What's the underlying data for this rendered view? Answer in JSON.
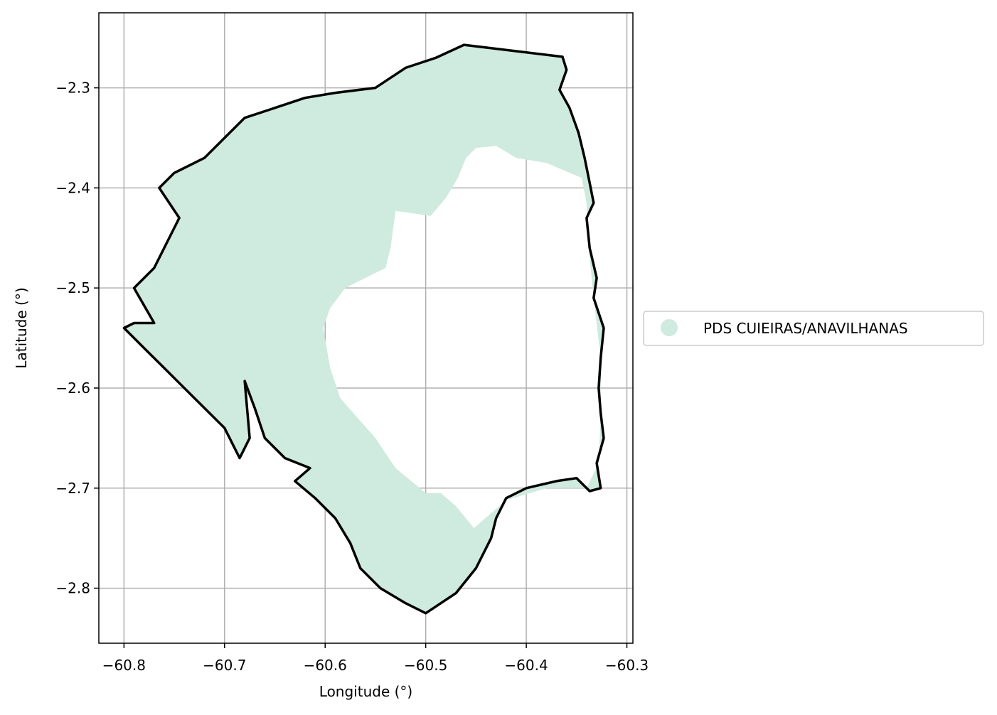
{
  "chart_data": {
    "type": "map",
    "xlabel": "Longitude (°)",
    "ylabel": "Latitude (°)",
    "xlim": [
      -60.825,
      -60.294
    ],
    "ylim": [
      -2.855,
      -2.225
    ],
    "xticks": [
      {
        "value": -60.8,
        "label": "−60.8"
      },
      {
        "value": -60.7,
        "label": "−60.7"
      },
      {
        "value": -60.6,
        "label": "−60.6"
      },
      {
        "value": -60.5,
        "label": "−60.5"
      },
      {
        "value": -60.4,
        "label": "−60.4"
      },
      {
        "value": -60.3,
        "label": "−60.3"
      }
    ],
    "yticks": [
      {
        "value": -2.3,
        "label": "−2.3"
      },
      {
        "value": -2.4,
        "label": "−2.4"
      },
      {
        "value": -2.5,
        "label": "−2.5"
      },
      {
        "value": -2.6,
        "label": "−2.6"
      },
      {
        "value": -2.7,
        "label": "−2.7"
      },
      {
        "value": -2.8,
        "label": "−2.8"
      }
    ],
    "grid": true,
    "legend": {
      "placement": "right-outside",
      "entries": [
        {
          "label": "PDS CUIEIRAS/ANAVILHANAS",
          "color": "#cfeade"
        }
      ]
    },
    "colors": {
      "fill": "#cfeade",
      "boundary": "#000000",
      "grid": "#b0b0b0"
    },
    "boundary": [
      [
        -60.462,
        -2.257
      ],
      [
        -60.364,
        -2.269
      ],
      [
        -60.36,
        -2.282
      ],
      [
        -60.367,
        -2.302
      ],
      [
        -60.357,
        -2.32
      ],
      [
        -60.348,
        -2.345
      ],
      [
        -60.342,
        -2.37
      ],
      [
        -60.337,
        -2.395
      ],
      [
        -60.333,
        -2.415
      ],
      [
        -60.34,
        -2.43
      ],
      [
        -60.337,
        -2.46
      ],
      [
        -60.33,
        -2.49
      ],
      [
        -60.333,
        -2.51
      ],
      [
        -60.323,
        -2.54
      ],
      [
        -60.326,
        -2.57
      ],
      [
        -60.328,
        -2.6
      ],
      [
        -60.326,
        -2.625
      ],
      [
        -60.323,
        -2.65
      ],
      [
        -60.33,
        -2.675
      ],
      [
        -60.326,
        -2.7
      ],
      [
        -60.337,
        -2.703
      ],
      [
        -60.35,
        -2.69
      ],
      [
        -60.37,
        -2.693
      ],
      [
        -60.4,
        -2.7
      ],
      [
        -60.42,
        -2.71
      ],
      [
        -60.43,
        -2.73
      ],
      [
        -60.435,
        -2.75
      ],
      [
        -60.45,
        -2.78
      ],
      [
        -60.47,
        -2.805
      ],
      [
        -60.485,
        -2.815
      ],
      [
        -60.5,
        -2.825
      ],
      [
        -60.52,
        -2.815
      ],
      [
        -60.545,
        -2.8
      ],
      [
        -60.565,
        -2.78
      ],
      [
        -60.575,
        -2.755
      ],
      [
        -60.59,
        -2.73
      ],
      [
        -60.61,
        -2.71
      ],
      [
        -60.63,
        -2.693
      ],
      [
        -60.615,
        -2.68
      ],
      [
        -60.64,
        -2.67
      ],
      [
        -60.66,
        -2.65
      ],
      [
        -60.67,
        -2.62
      ],
      [
        -60.68,
        -2.593
      ],
      [
        -60.675,
        -2.65
      ],
      [
        -60.685,
        -2.67
      ],
      [
        -60.7,
        -2.64
      ],
      [
        -60.73,
        -2.61
      ],
      [
        -60.76,
        -2.58
      ],
      [
        -60.78,
        -2.56
      ],
      [
        -60.8,
        -2.54
      ],
      [
        -60.79,
        -2.535
      ],
      [
        -60.77,
        -2.535
      ],
      [
        -60.79,
        -2.5
      ],
      [
        -60.77,
        -2.48
      ],
      [
        -60.76,
        -2.46
      ],
      [
        -60.745,
        -2.43
      ],
      [
        -60.765,
        -2.4
      ],
      [
        -60.75,
        -2.385
      ],
      [
        -60.72,
        -2.37
      ],
      [
        -60.71,
        -2.36
      ],
      [
        -60.7,
        -2.35
      ],
      [
        -60.68,
        -2.33
      ],
      [
        -60.65,
        -2.32
      ],
      [
        -60.62,
        -2.31
      ],
      [
        -60.59,
        -2.305
      ],
      [
        -60.55,
        -2.3
      ],
      [
        -60.52,
        -2.28
      ],
      [
        -60.49,
        -2.27
      ]
    ],
    "hole": [
      [
        -60.58,
        -2.5
      ],
      [
        -60.56,
        -2.49
      ],
      [
        -60.54,
        -2.48
      ],
      [
        -60.535,
        -2.46
      ],
      [
        -60.53,
        -2.423
      ],
      [
        -60.515,
        -2.425
      ],
      [
        -60.495,
        -2.428
      ],
      [
        -60.48,
        -2.41
      ],
      [
        -60.468,
        -2.39
      ],
      [
        -60.46,
        -2.37
      ],
      [
        -60.45,
        -2.36
      ],
      [
        -60.43,
        -2.358
      ],
      [
        -60.41,
        -2.37
      ],
      [
        -60.38,
        -2.375
      ],
      [
        -60.345,
        -2.39
      ],
      [
        -60.34,
        -2.415
      ],
      [
        -60.338,
        -2.46
      ],
      [
        -60.333,
        -2.51
      ],
      [
        -60.326,
        -2.57
      ],
      [
        -60.326,
        -2.625
      ],
      [
        -60.328,
        -2.675
      ],
      [
        -60.34,
        -2.7
      ],
      [
        -60.38,
        -2.7
      ],
      [
        -60.42,
        -2.712
      ],
      [
        -60.435,
        -2.725
      ],
      [
        -60.452,
        -2.74
      ],
      [
        -60.47,
        -2.718
      ],
      [
        -60.485,
        -2.705
      ],
      [
        -60.5,
        -2.705
      ],
      [
        -60.53,
        -2.68
      ],
      [
        -60.55,
        -2.65
      ],
      [
        -60.585,
        -2.61
      ],
      [
        -60.595,
        -2.58
      ],
      [
        -60.602,
        -2.54
      ],
      [
        -60.595,
        -2.52
      ]
    ]
  }
}
